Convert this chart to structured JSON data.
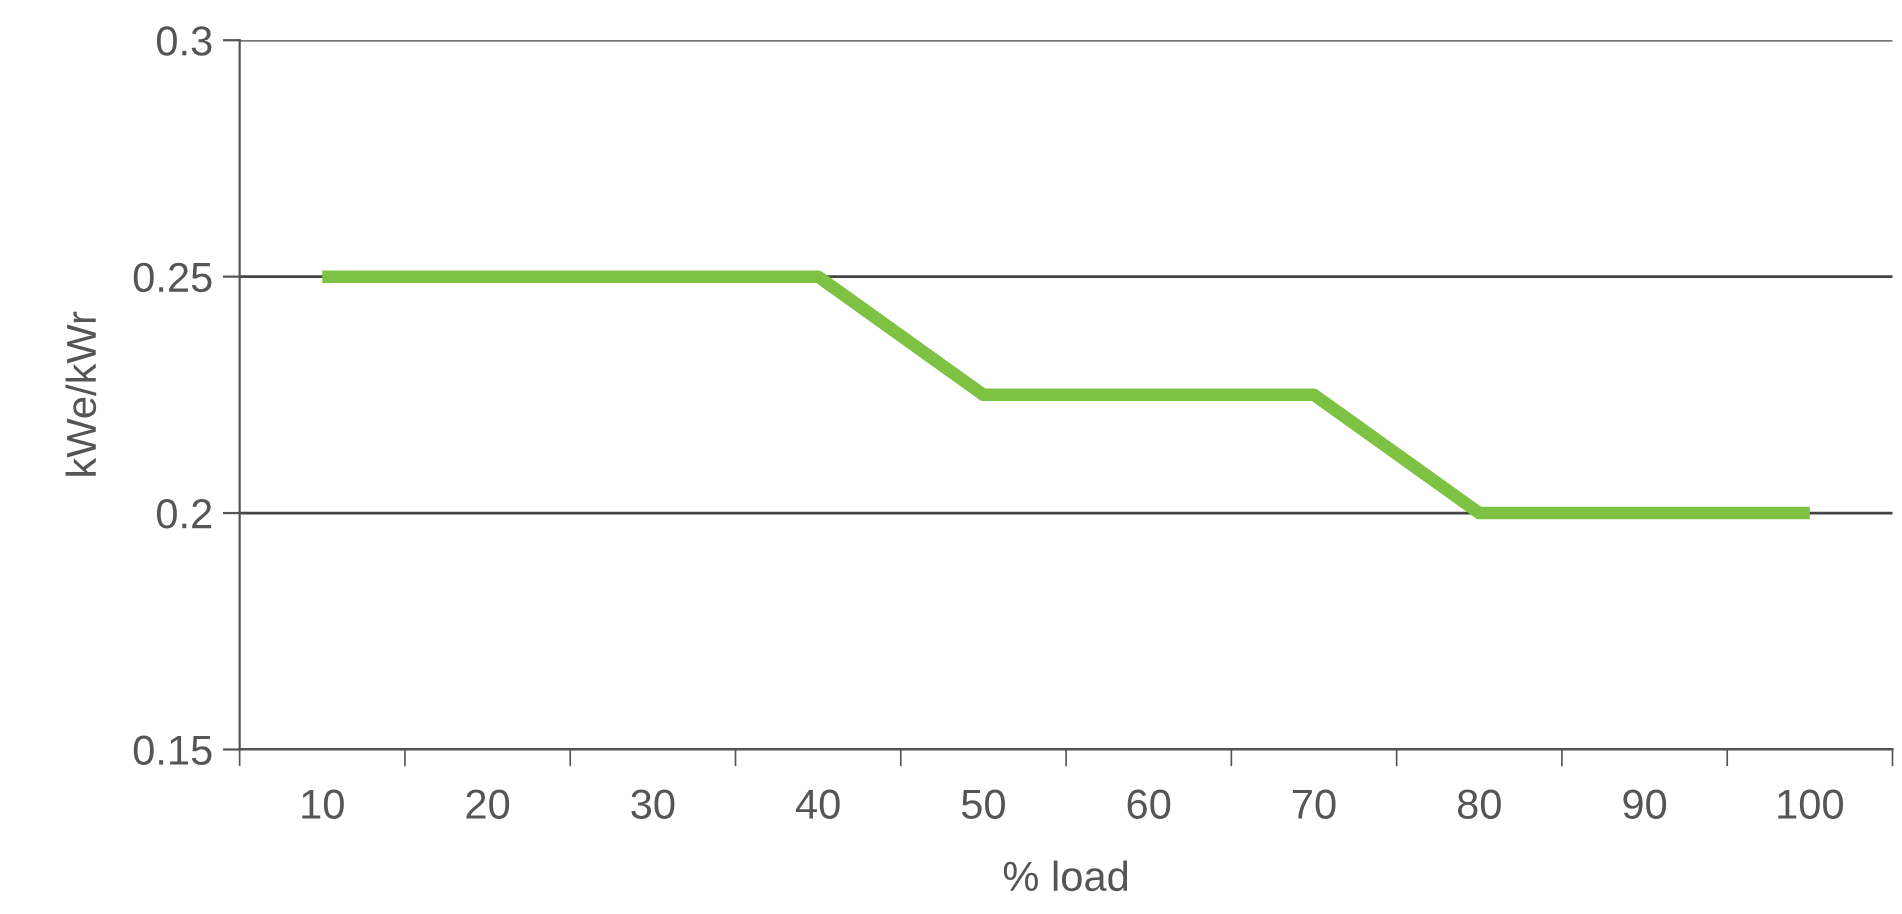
{
  "chart_data": {
    "type": "line",
    "xlabel": "% load",
    "ylabel": "kWe/kWr",
    "categories": [
      "10",
      "20",
      "30",
      "40",
      "50",
      "60",
      "70",
      "80",
      "90",
      "100"
    ],
    "series": [
      {
        "color": "#7dc242",
        "values": [
          0.25,
          0.25,
          0.25,
          0.25,
          0.225,
          0.225,
          0.225,
          0.2,
          0.2,
          0.2
        ]
      }
    ],
    "ylim": [
      0.15,
      0.3
    ],
    "yticks": [
      0.15,
      0.2,
      0.25,
      0.3
    ],
    "grid": "y",
    "legend": false,
    "marker": "none",
    "line_style": "solid"
  }
}
